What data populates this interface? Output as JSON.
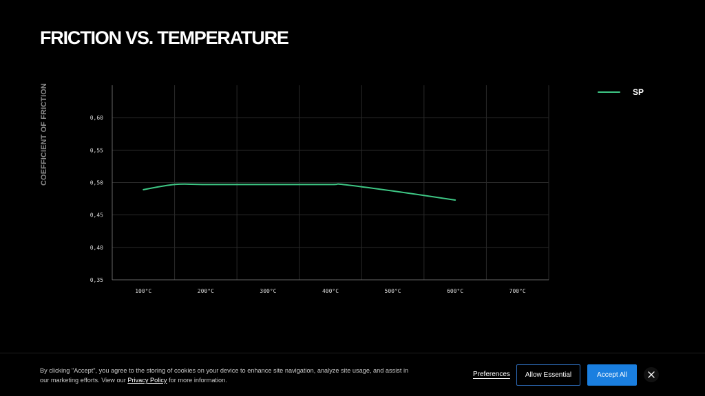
{
  "page": {
    "title": "FRICTION VS. TEMPERATURE"
  },
  "colors": {
    "series": "#3ec785",
    "grid": "#2a2a2a",
    "axis": "#666666",
    "accent_button": "#1a7fe0"
  },
  "chart_data": {
    "type": "line",
    "title": "FRICTION VS. TEMPERATURE",
    "xlabel": "",
    "ylabel": "COEFFICIENT OF FRICTION",
    "x_categories": [
      "100°C",
      "200°C",
      "300°C",
      "400°C",
      "500°C",
      "600°C",
      "700°C"
    ],
    "y_ticks": [
      "0,35",
      "0,40",
      "0,45",
      "0,50",
      "0,55",
      "0,60"
    ],
    "ylim": [
      0.35,
      0.65
    ],
    "grid": true,
    "legend_position": "top-right",
    "series": [
      {
        "name": "SP",
        "points": [
          {
            "x": 100,
            "y": 0.489
          },
          {
            "x": 150,
            "y": 0.497
          },
          {
            "x": 200,
            "y": 0.497
          },
          {
            "x": 300,
            "y": 0.497
          },
          {
            "x": 400,
            "y": 0.497
          },
          {
            "x": 420,
            "y": 0.497
          },
          {
            "x": 500,
            "y": 0.487
          },
          {
            "x": 600,
            "y": 0.473
          }
        ]
      }
    ]
  },
  "cookie": {
    "text_before": "By clicking \"Accept\", you agree to the storing of cookies on your device to enhance site navigation, analyze site usage, and assist in our marketing efforts. View our ",
    "policy_link": "Privacy Policy",
    "text_after": " for more information.",
    "preferences": "Preferences",
    "allow_essential": "Allow Essential",
    "accept_all": "Accept All",
    "close_icon": "close-icon"
  }
}
